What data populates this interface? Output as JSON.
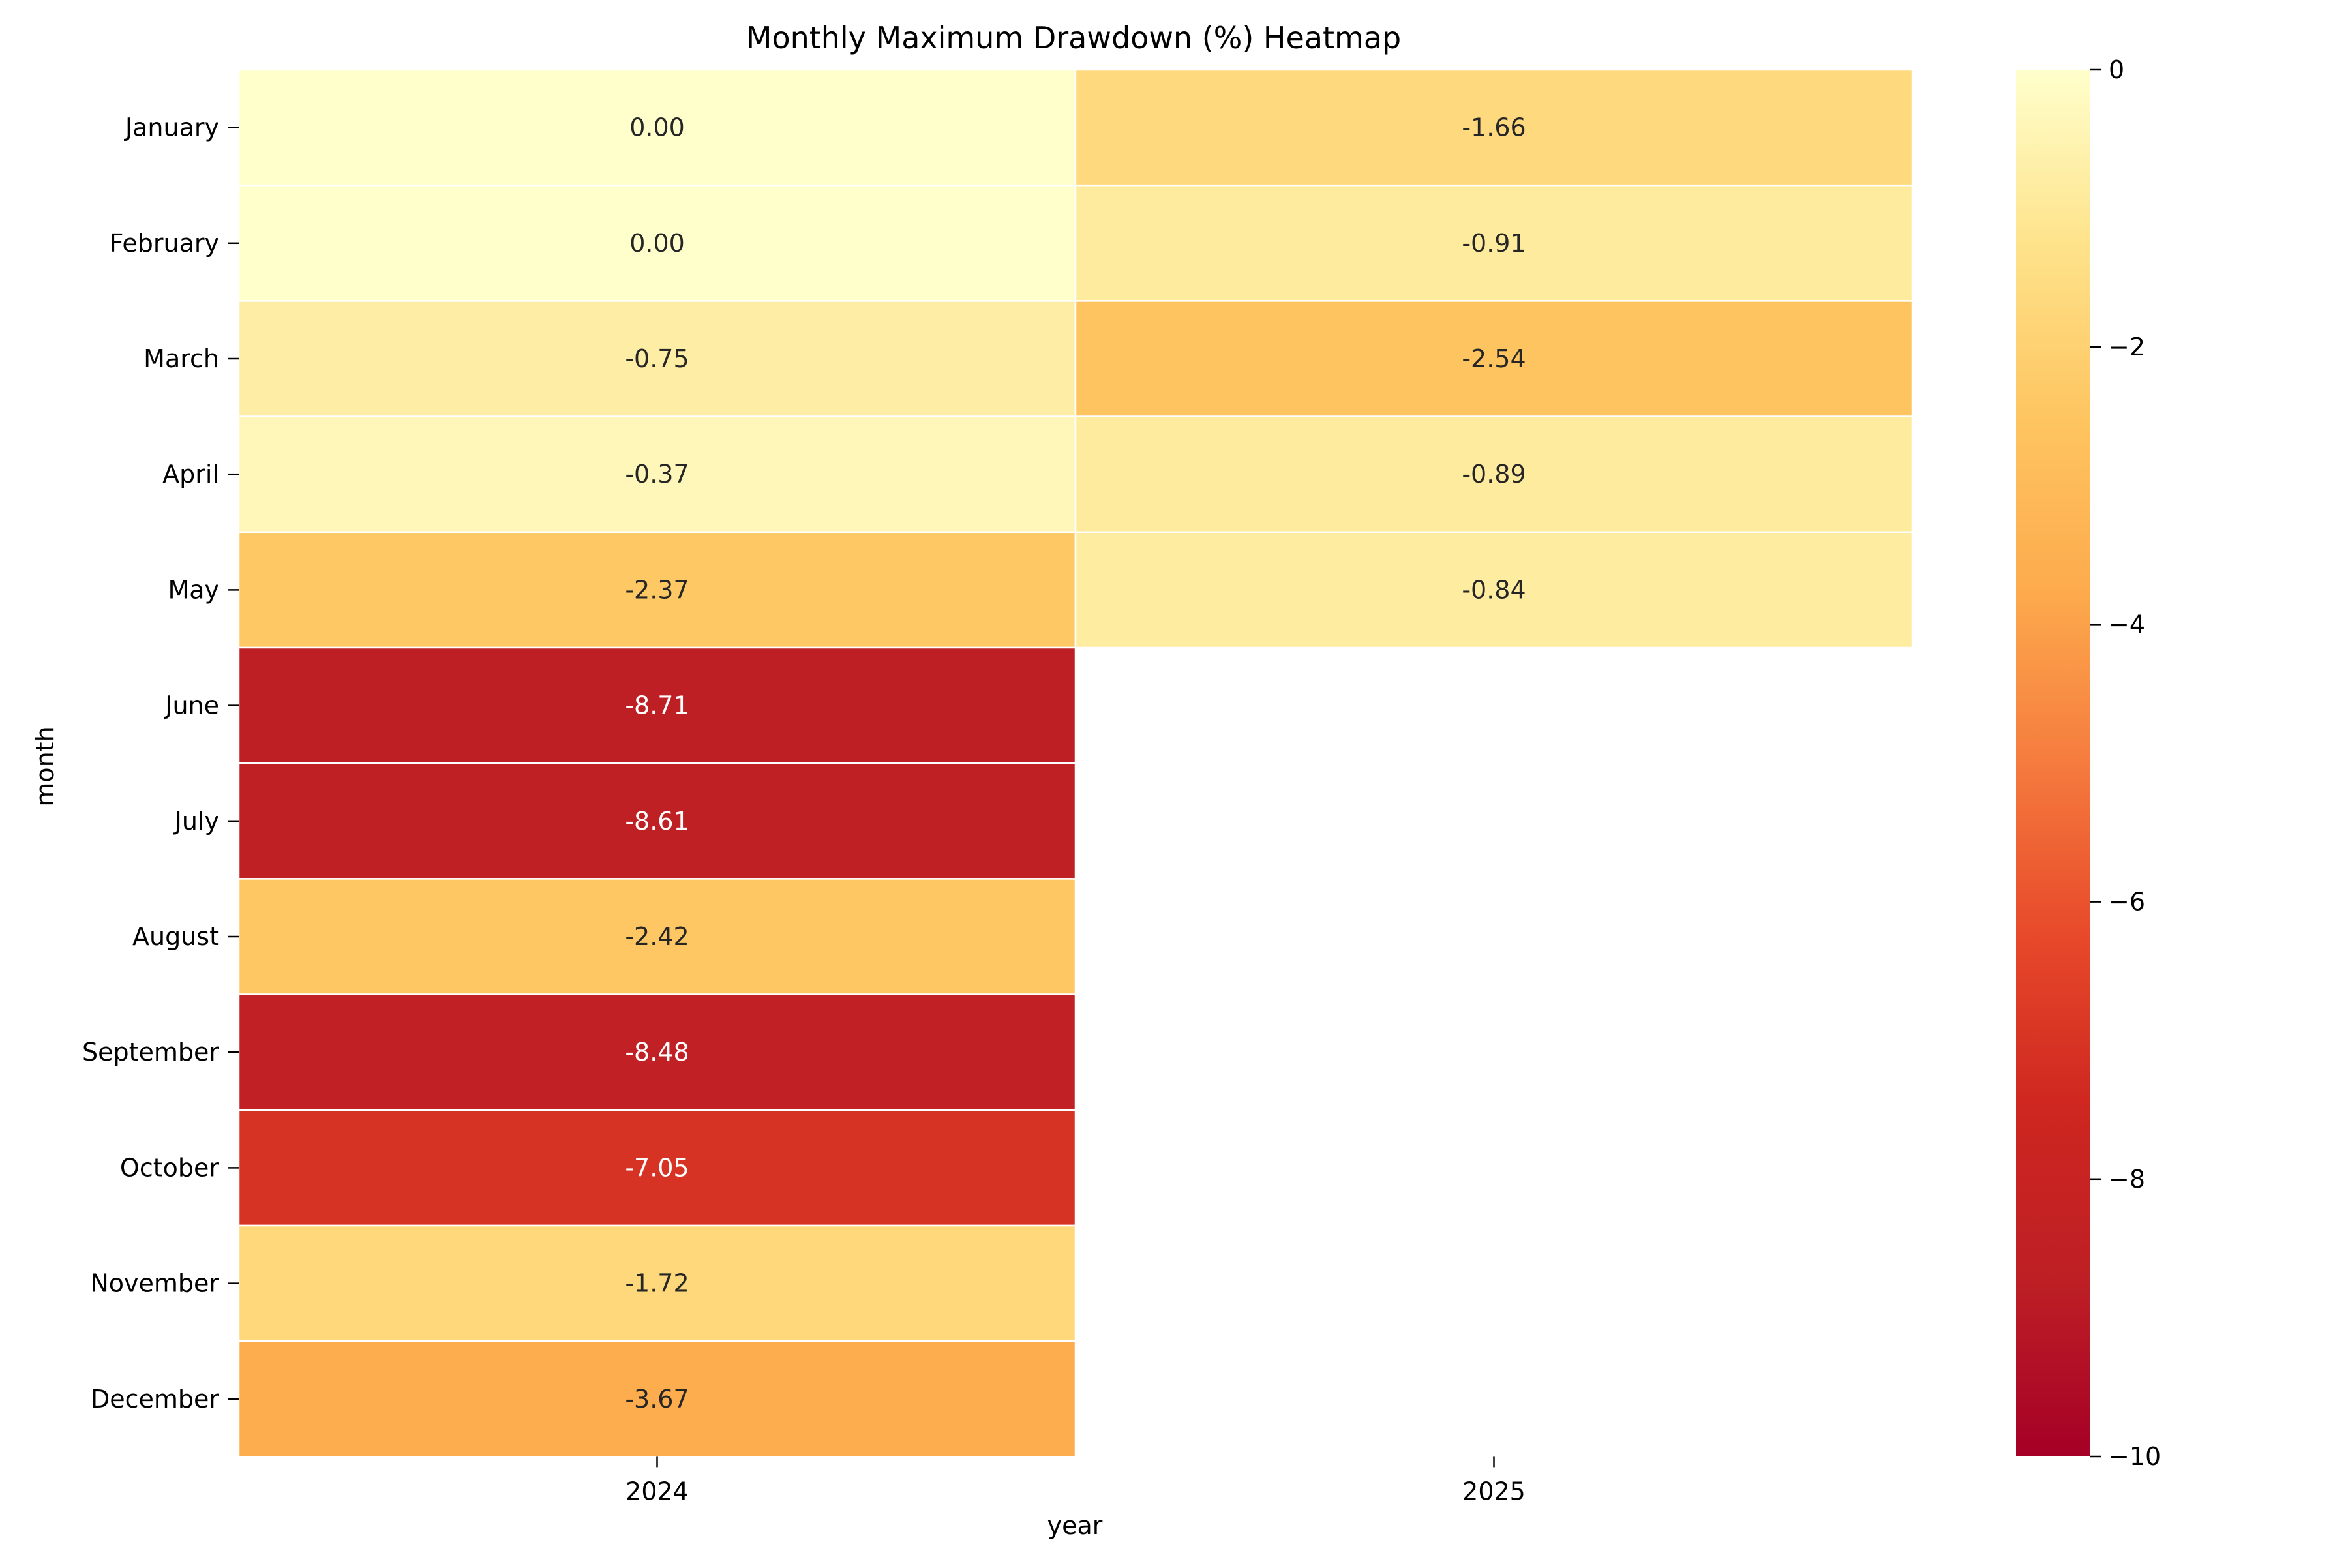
{
  "chart_data": {
    "type": "heatmap",
    "title": "Monthly Maximum Drawdown (%) Heatmap",
    "xlabel": "year",
    "ylabel": "month",
    "x_categories": [
      "2024",
      "2025"
    ],
    "y_categories": [
      "January",
      "February",
      "March",
      "April",
      "May",
      "June",
      "July",
      "August",
      "September",
      "October",
      "November",
      "December"
    ],
    "values": [
      [
        0.0,
        -1.66
      ],
      [
        0.0,
        -0.91
      ],
      [
        -0.75,
        -2.54
      ],
      [
        -0.37,
        -0.89
      ],
      [
        -2.37,
        -0.84
      ],
      [
        -8.71,
        null
      ],
      [
        -8.61,
        null
      ],
      [
        -2.42,
        null
      ],
      [
        -8.48,
        null
      ],
      [
        -7.05,
        null
      ],
      [
        -1.72,
        null
      ],
      [
        -3.67,
        null
      ]
    ],
    "value_labels": [
      [
        "0.00",
        "-1.66"
      ],
      [
        "0.00",
        "-0.91"
      ],
      [
        "-0.75",
        "-2.54"
      ],
      [
        "-0.37",
        "-0.89"
      ],
      [
        "-2.37",
        "-0.84"
      ],
      [
        "-8.71",
        null
      ],
      [
        "-8.61",
        null
      ],
      [
        "-2.42",
        null
      ],
      [
        "-8.48",
        null
      ],
      [
        "-7.05",
        null
      ],
      [
        "-1.72",
        null
      ],
      [
        "-3.67",
        null
      ]
    ],
    "colorbar": {
      "min": -10,
      "max": 0,
      "ticks": [
        0,
        -2,
        -4,
        -6,
        -8,
        -10
      ],
      "tick_labels": [
        "0",
        "−2",
        "−4",
        "−6",
        "−8",
        "−10"
      ],
      "colormap": "YlOrRd_r",
      "color_stops": [
        "#ffffcc",
        "#ffeda0",
        "#fed976",
        "#feb24c",
        "#fd8d3c",
        "#fc4e2a",
        "#e31a1c",
        "#bd0026",
        "#800026"
      ],
      "anchor_colors": [
        "#ffffcc",
        "#fee38b",
        "#fec561",
        "#fdab4d",
        "#f57b3e",
        "#e7492a",
        "#ce2620",
        "#bd1f25",
        "#a50026"
      ]
    },
    "cell_border_color": "#ffffff",
    "missing_cell_color": "#ffffff",
    "legend": "colorbar-right"
  }
}
